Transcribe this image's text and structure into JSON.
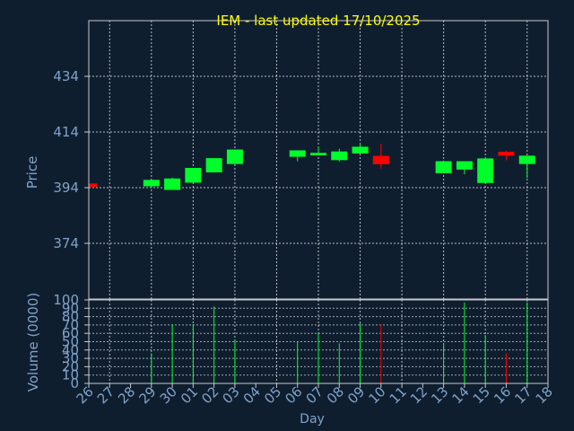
{
  "title": "IEM - last updated 17/10/2025",
  "colors": {
    "background": "#0f1e2f",
    "title": "#ffff00",
    "text": "#7fa3c8",
    "up": "#00ff2a",
    "down": "#ff0000",
    "frame": "#c8c8c8",
    "grid": "#ffffff"
  },
  "chart_data": [
    {
      "type": "candlestick",
      "ylabel": "Price",
      "ylim": [
        354,
        454
      ],
      "yticks": [
        374,
        394,
        414,
        434
      ],
      "x": [
        "26",
        "27",
        "28",
        "29",
        "30",
        "01",
        "02",
        "03",
        "04",
        "05",
        "06",
        "07",
        "08",
        "09",
        "10",
        "11",
        "12",
        "13",
        "14",
        "15",
        "16",
        "17",
        "18"
      ],
      "candles": [
        {
          "day": "26",
          "open": 395.5,
          "close": 394.3,
          "high": 395.5,
          "low": 394.3,
          "dir": "down"
        },
        {
          "day": "29",
          "open": 394.5,
          "close": 396.8,
          "high": 396.8,
          "low": 394.0,
          "dir": "up"
        },
        {
          "day": "30",
          "open": 393.2,
          "close": 397.3,
          "high": 397.6,
          "low": 393.2,
          "dir": "up"
        },
        {
          "day": "01",
          "open": 395.8,
          "close": 401.1,
          "high": 401.1,
          "low": 395.8,
          "dir": "up"
        },
        {
          "day": "02",
          "open": 399.5,
          "close": 404.6,
          "high": 404.6,
          "low": 399.5,
          "dir": "up"
        },
        {
          "day": "03",
          "open": 402.5,
          "close": 407.7,
          "high": 407.7,
          "low": 402.5,
          "dir": "up"
        },
        {
          "day": "06",
          "open": 405.1,
          "close": 407.4,
          "high": 407.4,
          "low": 403.5,
          "dir": "up"
        },
        {
          "day": "07",
          "open": 405.6,
          "close": 406.5,
          "high": 408.8,
          "low": 405.6,
          "dir": "up"
        },
        {
          "day": "08",
          "open": 403.9,
          "close": 407.0,
          "high": 408.0,
          "low": 403.4,
          "dir": "up"
        },
        {
          "day": "09",
          "open": 406.3,
          "close": 408.7,
          "high": 410.0,
          "low": 406.3,
          "dir": "up"
        },
        {
          "day": "10",
          "open": 405.4,
          "close": 402.4,
          "high": 409.8,
          "low": 400.9,
          "dir": "down"
        },
        {
          "day": "13",
          "open": 399.2,
          "close": 403.5,
          "high": 403.5,
          "low": 399.2,
          "dir": "up"
        },
        {
          "day": "14",
          "open": 400.5,
          "close": 403.5,
          "high": 403.5,
          "low": 398.8,
          "dir": "up"
        },
        {
          "day": "15",
          "open": 395.7,
          "close": 404.5,
          "high": 404.5,
          "low": 395.7,
          "dir": "up"
        },
        {
          "day": "16",
          "open": 406.9,
          "close": 405.5,
          "high": 407.3,
          "low": 403.8,
          "dir": "down"
        },
        {
          "day": "17",
          "open": 402.5,
          "close": 405.5,
          "high": 405.5,
          "low": 397.5,
          "dir": "up"
        }
      ]
    },
    {
      "type": "bar",
      "xlabel": "Day",
      "ylabel": "Volume (0000)",
      "ylim": [
        0,
        100
      ],
      "yticks": [
        0,
        10,
        20,
        30,
        40,
        50,
        60,
        70,
        80,
        90,
        100
      ],
      "bars": [
        {
          "day": "26",
          "value": 0,
          "dir": "down"
        },
        {
          "day": "29",
          "value": 36,
          "dir": "up"
        },
        {
          "day": "30",
          "value": 71,
          "dir": "up"
        },
        {
          "day": "01",
          "value": 71,
          "dir": "up"
        },
        {
          "day": "02",
          "value": 92,
          "dir": "up"
        },
        {
          "day": "03",
          "value": 52,
          "dir": "up"
        },
        {
          "day": "06",
          "value": 50,
          "dir": "up"
        },
        {
          "day": "07",
          "value": 60,
          "dir": "up"
        },
        {
          "day": "08",
          "value": 48,
          "dir": "up"
        },
        {
          "day": "09",
          "value": 72,
          "dir": "up"
        },
        {
          "day": "10",
          "value": 71,
          "dir": "down"
        },
        {
          "day": "13",
          "value": 48,
          "dir": "up"
        },
        {
          "day": "14",
          "value": 97,
          "dir": "up"
        },
        {
          "day": "15",
          "value": 58,
          "dir": "up"
        },
        {
          "day": "16",
          "value": 36,
          "dir": "down"
        },
        {
          "day": "17",
          "value": 97,
          "dir": "up"
        }
      ]
    }
  ]
}
